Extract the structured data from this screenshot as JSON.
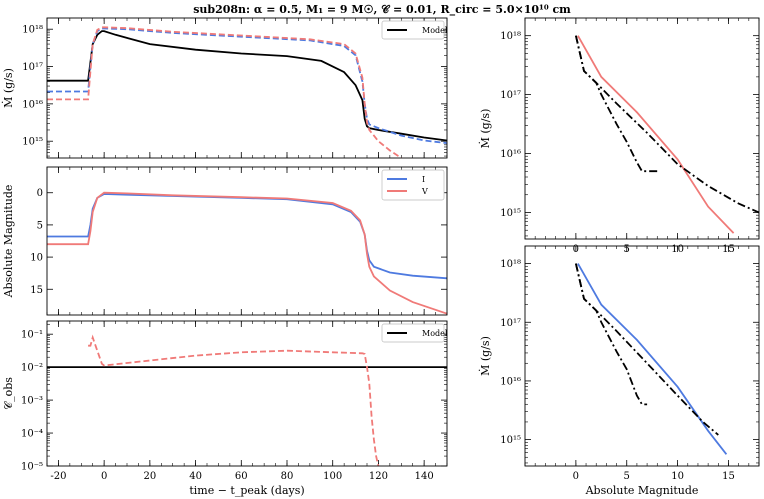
{
  "title": "sub208n: α = 0.5, M₁ = 9 M☉, 𝒞 = 0.01, R_circ = 5.0×10¹⁰ cm",
  "colors": {
    "black": "#000000",
    "blue": "#4e7ae0",
    "red": "#f07a78"
  },
  "chart_data": [
    {
      "id": "mdot-vs-time",
      "type": "line",
      "ylabel": "Ṁ (g/s)",
      "yscale": "log",
      "xlim": [
        -25,
        150
      ],
      "ylim_log10": [
        14.55,
        18.3
      ],
      "yticks": [
        "10¹⁵",
        "10¹⁶",
        "10¹⁷",
        "10¹⁸"
      ],
      "legend": {
        "entries": [
          "Model"
        ],
        "placement": "top-right"
      },
      "series": [
        {
          "name": "Model",
          "color": "black",
          "style": "solid",
          "x": [
            -25,
            -7,
            -5,
            -3,
            -1,
            0,
            5,
            20,
            40,
            60,
            80,
            95,
            105,
            110,
            113,
            114,
            115,
            116,
            120,
            130,
            140,
            150
          ],
          "y": [
            16.62,
            16.62,
            17.6,
            17.85,
            17.95,
            17.95,
            17.85,
            17.6,
            17.45,
            17.35,
            17.28,
            17.15,
            16.85,
            16.5,
            16.1,
            15.6,
            15.4,
            15.35,
            15.3,
            15.2,
            15.1,
            15.02
          ]
        },
        {
          "color": "blue",
          "style": "dashed",
          "x": [
            -25,
            -7,
            -5,
            -3,
            -1,
            0,
            10,
            30,
            60,
            90,
            105,
            110,
            113,
            114,
            115,
            116,
            120,
            130,
            140,
            150
          ],
          "y": [
            16.33,
            16.33,
            17.6,
            17.95,
            18.02,
            18.02,
            18.0,
            17.9,
            17.8,
            17.7,
            17.55,
            17.3,
            16.6,
            16.0,
            15.6,
            15.45,
            15.35,
            15.15,
            15.02,
            14.95
          ]
        },
        {
          "color": "red",
          "style": "dashed",
          "x": [
            -25,
            -7,
            -5,
            -3,
            -1,
            0,
            10,
            30,
            60,
            90,
            105,
            110,
            113,
            114,
            115,
            116,
            118,
            120,
            125,
            130
          ],
          "y": [
            16.12,
            16.12,
            17.6,
            17.98,
            18.05,
            18.05,
            18.03,
            17.93,
            17.83,
            17.73,
            17.6,
            17.35,
            16.7,
            16.0,
            15.5,
            15.3,
            15.15,
            15.0,
            14.75,
            14.55
          ]
        }
      ]
    },
    {
      "id": "mag-vs-time",
      "type": "line",
      "ylabel": "Absolute Magnitude",
      "xlim": [
        -25,
        150
      ],
      "ylim": [
        19,
        -4
      ],
      "yticks": [
        0,
        5,
        10,
        15
      ],
      "legend": {
        "entries": [
          "I",
          "V"
        ],
        "placement": "top-right"
      },
      "series": [
        {
          "name": "I",
          "color": "blue",
          "style": "solid",
          "x": [
            -25,
            -7,
            -6,
            -5,
            -3,
            0,
            10,
            30,
            60,
            80,
            100,
            108,
            112,
            114,
            115,
            116,
            118,
            125,
            135,
            150
          ],
          "y": [
            6.8,
            6.8,
            5,
            2.5,
            0.8,
            0.2,
            0.3,
            0.5,
            0.8,
            1.0,
            1.8,
            3.0,
            4.5,
            6.5,
            9.0,
            10.5,
            11.5,
            12.4,
            12.9,
            13.3
          ]
        },
        {
          "name": "V",
          "color": "red",
          "style": "solid",
          "x": [
            -25,
            -7,
            -6,
            -5,
            -3,
            0,
            10,
            30,
            60,
            80,
            100,
            108,
            112,
            114,
            115,
            116,
            118,
            125,
            135,
            150
          ],
          "y": [
            8.0,
            8.0,
            6.0,
            3.0,
            0.8,
            0.0,
            0.1,
            0.4,
            0.7,
            0.9,
            1.6,
            2.8,
            4.3,
            6.5,
            9.5,
            11.5,
            13.0,
            15.2,
            17.0,
            18.8
          ]
        }
      ]
    },
    {
      "id": "cobs-vs-time",
      "type": "line",
      "ylabel": "𝒞_obs",
      "xlabel": "time − t_peak (days)",
      "yscale": "log",
      "xlim": [
        -25,
        150
      ],
      "ylim_log10": [
        -5,
        -0.6
      ],
      "xticks": [
        -20,
        0,
        20,
        40,
        60,
        80,
        100,
        120,
        140
      ],
      "yticks": [
        "10⁻⁵",
        "10⁻⁴",
        "10⁻³",
        "10⁻²",
        "10⁻¹"
      ],
      "legend": {
        "entries": [
          "Model"
        ],
        "placement": "top-right"
      },
      "series": [
        {
          "name": "Model",
          "color": "black",
          "style": "solid",
          "x": [
            -25,
            150
          ],
          "y": [
            -2,
            -2
          ]
        },
        {
          "color": "red",
          "style": "dashed",
          "x": [
            -7,
            -6,
            -5,
            -3,
            -1,
            0,
            20,
            40,
            60,
            80,
            100,
            113,
            114,
            115,
            116,
            117,
            118,
            119,
            120
          ],
          "y": [
            -1.35,
            -1.35,
            -1.1,
            -1.5,
            -1.9,
            -1.95,
            -1.8,
            -1.65,
            -1.55,
            -1.5,
            -1.55,
            -1.58,
            -1.6,
            -2.0,
            -2.5,
            -3.5,
            -4.2,
            -4.7,
            -5.0
          ]
        }
      ]
    },
    {
      "id": "mdot-vs-mag-V",
      "type": "line",
      "ylabel": "Ṁ (g/s)",
      "yscale": "log",
      "xlim": [
        -5,
        18
      ],
      "ylim_log10": [
        14.55,
        18.3
      ],
      "xticks": [
        0,
        5,
        10,
        15
      ],
      "yticks": [
        "10¹⁵",
        "10¹⁶",
        "10¹⁷",
        "10¹⁸"
      ],
      "series": [
        {
          "color": "red",
          "style": "solid",
          "x": [
            0.2,
            2.5,
            6,
            10,
            13,
            15.5
          ],
          "y": [
            18.0,
            17.3,
            16.7,
            15.9,
            15.1,
            14.65
          ]
        },
        {
          "color": "black",
          "style": "dashdot",
          "x": [
            0,
            0.8,
            2,
            2.5,
            4,
            5,
            6,
            6.5,
            8
          ],
          "y": [
            18.0,
            17.4,
            17.2,
            17.0,
            16.5,
            16.2,
            15.85,
            15.7,
            15.7
          ]
        },
        {
          "color": "black",
          "style": "dashdot",
          "x": [
            0,
            0.8,
            2,
            4,
            7,
            10,
            13,
            16,
            18
          ],
          "y": [
            18.0,
            17.4,
            17.2,
            16.85,
            16.35,
            15.82,
            15.45,
            15.15,
            15.0
          ]
        }
      ]
    },
    {
      "id": "mdot-vs-mag-I",
      "type": "line",
      "ylabel": "Ṁ (g/s)",
      "xlabel": "Absolute Magnitude",
      "yscale": "log",
      "xlim": [
        -5,
        18
      ],
      "ylim_log10": [
        14.55,
        18.3
      ],
      "xticks": [
        0,
        5,
        10,
        15
      ],
      "yticks": [
        "10¹⁵",
        "10¹⁶",
        "10¹⁷",
        "10¹⁸"
      ],
      "series": [
        {
          "color": "blue",
          "style": "solid",
          "x": [
            0.2,
            2.5,
            6,
            10,
            13,
            14.8
          ],
          "y": [
            18.0,
            17.3,
            16.7,
            15.9,
            15.15,
            14.75
          ]
        },
        {
          "color": "black",
          "style": "dashdot",
          "x": [
            0,
            0.8,
            2,
            2.5,
            4,
            5,
            6,
            6.5,
            7
          ],
          "y": [
            18.0,
            17.4,
            17.2,
            17.0,
            16.5,
            16.2,
            15.75,
            15.6,
            15.6
          ]
        },
        {
          "color": "black",
          "style": "dashdot",
          "x": [
            0,
            0.8,
            2,
            4,
            7,
            10,
            12.5,
            14
          ],
          "y": [
            18.0,
            17.4,
            17.2,
            16.85,
            16.3,
            15.75,
            15.3,
            15.08
          ]
        }
      ]
    }
  ]
}
